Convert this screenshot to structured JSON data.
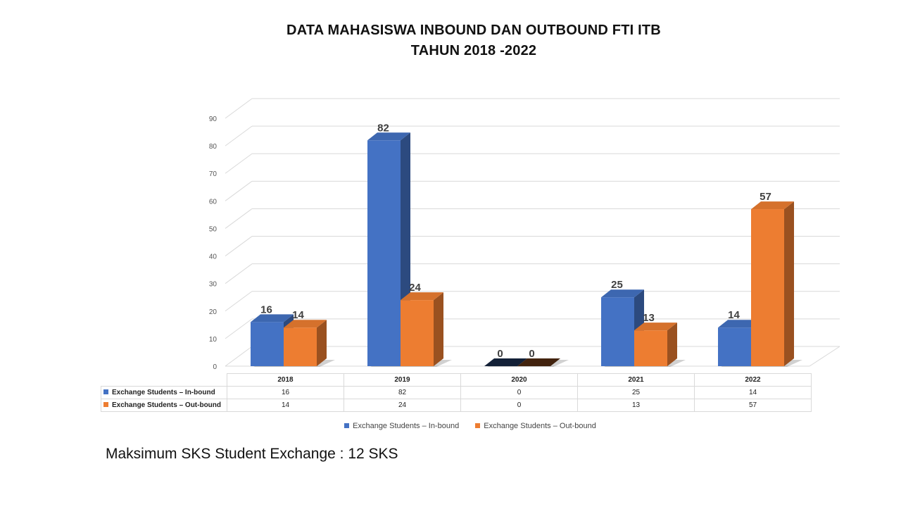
{
  "title_line1": "DATA MAHASISWA INBOUND DAN OUTBOUND  FTI ITB",
  "title_line2": "TAHUN 2018 -2022",
  "note": "Maksimum SKS Student Exchange   : 12 SKS",
  "chart_data": {
    "type": "bar",
    "categories": [
      "2018",
      "2019",
      "2020",
      "2021",
      "2022"
    ],
    "series": [
      {
        "name": "Exchange Students – In-bound",
        "values": [
          16,
          82,
          0,
          25,
          14
        ],
        "color": "#4472C4"
      },
      {
        "name": "Exchange Students – Out-bound",
        "values": [
          14,
          24,
          0,
          13,
          57
        ],
        "color": "#ED7D31"
      }
    ],
    "ylim": [
      0,
      90
    ],
    "yticks": [
      "0",
      "10",
      "20",
      "30",
      "40",
      "50",
      "60",
      "70",
      "80",
      "90"
    ],
    "grid": true,
    "data_table": true,
    "legend_position": "bottom"
  }
}
